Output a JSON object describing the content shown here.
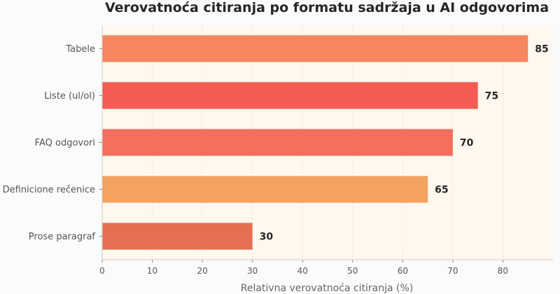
{
  "chart_data": {
    "type": "bar",
    "orientation": "horizontal",
    "title": "Verovatnoća citiranja po formatu sadržaja u AI odgovorima",
    "xlabel": "Relativna verovatnoća citiranja (%)",
    "ylabel": "",
    "xlim": [
      0,
      90
    ],
    "xticks": [
      0,
      10,
      20,
      30,
      40,
      50,
      60,
      70,
      80
    ],
    "grid": true,
    "categories": [
      "Tabele",
      "Liste (ul/ol)",
      "FAQ odgovori",
      "Definicione rečenice",
      "Prose paragraf"
    ],
    "values": [
      85,
      75,
      70,
      65,
      30
    ],
    "value_labels": [
      "85",
      "75",
      "70",
      "65",
      "30"
    ],
    "colors": [
      "#f5865f",
      "#f25c54",
      "#f4705c",
      "#f4a261",
      "#e76f51"
    ],
    "plot_background": "#fff8ef"
  }
}
